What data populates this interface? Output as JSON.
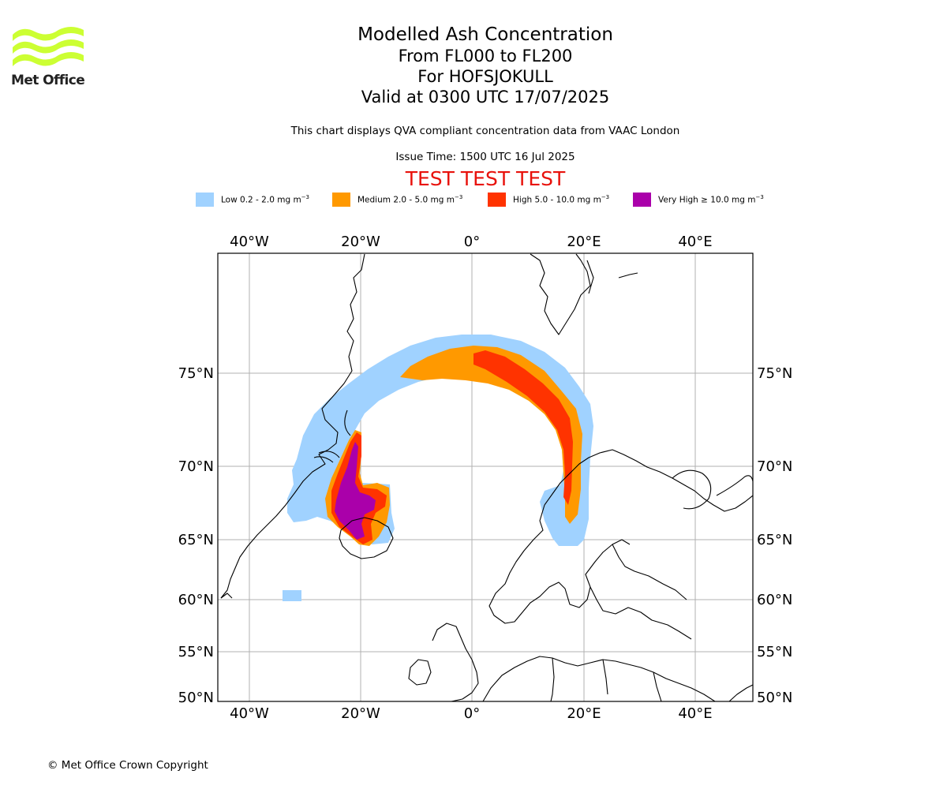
{
  "logo": {
    "text": "Met Office",
    "color": "#ccff33"
  },
  "titles": {
    "main": "Modelled Ash Concentration",
    "levels": "From FL000 to FL200",
    "volcano": "For HOFSJOKULL",
    "valid": "Valid at 0300 UTC 17/07/2025"
  },
  "subtitle": "This chart displays QVA compliant concentration data from VAAC London",
  "issue_time": "Issue Time: 1500 UTC 16 Jul 2025",
  "test_banner": "TEST TEST TEST",
  "legend": [
    {
      "label": "Low 0.2 - 2.0 mg m",
      "color": "#a0d2ff"
    },
    {
      "label": "Medium 2.0 - 5.0 mg m",
      "color": "#ff9900"
    },
    {
      "label": "High 5.0 - 10.0 mg m",
      "color": "#ff3300"
    },
    {
      "label": "Very High ≥ 10.0 mg m",
      "color": "#aa00aa"
    }
  ],
  "legend_unit_exponent": "−3",
  "map": {
    "lon_labels": [
      "40°W",
      "20°W",
      "0°",
      "20°E",
      "40°E"
    ],
    "lat_labels": [
      "75°N",
      "70°N",
      "65°N",
      "60°N",
      "55°N",
      "50°N"
    ],
    "grid": true
  },
  "copyright": "© Met Office Crown Copyright"
}
